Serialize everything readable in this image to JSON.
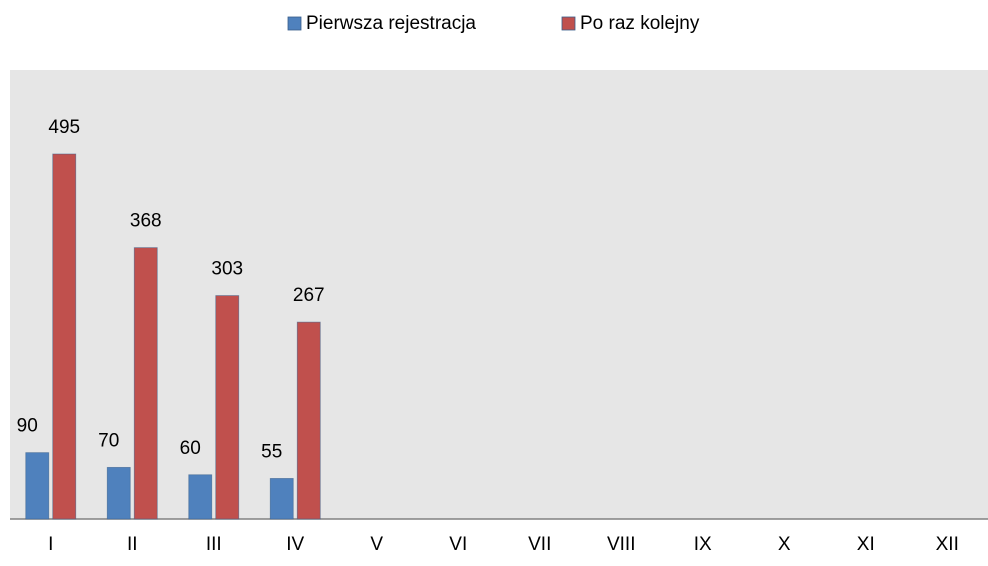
{
  "chart_data": {
    "type": "bar",
    "categories": [
      "I",
      "II",
      "III",
      "IV",
      "V",
      "VI",
      "VII",
      "VIII",
      "IX",
      "X",
      "XI",
      "XII"
    ],
    "series": [
      {
        "name": "Pierwsza rejestracja",
        "color": "#4f81bd",
        "values": [
          90,
          70,
          60,
          55,
          null,
          null,
          null,
          null,
          null,
          null,
          null,
          null
        ]
      },
      {
        "name": "Po raz kolejny",
        "color": "#c0504d",
        "values": [
          495,
          368,
          303,
          267,
          null,
          null,
          null,
          null,
          null,
          null,
          null,
          null
        ]
      }
    ],
    "legend": "top"
  }
}
